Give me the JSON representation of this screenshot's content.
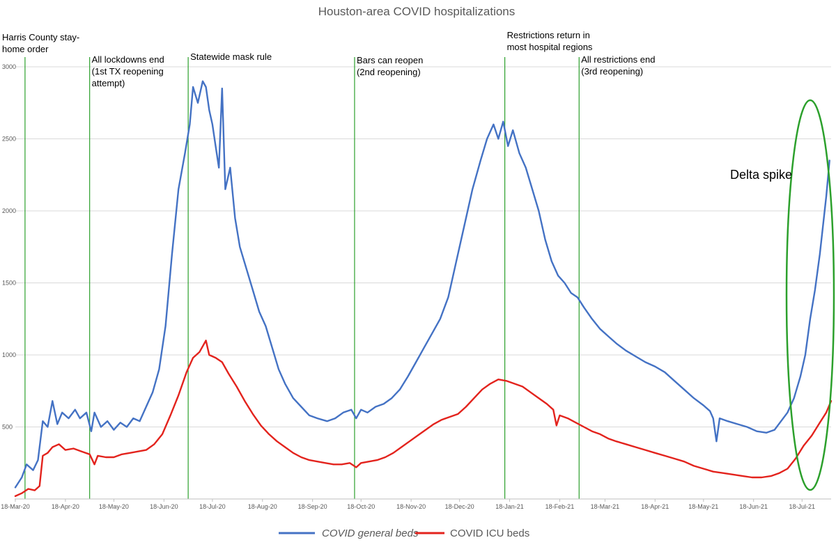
{
  "chart_data": {
    "type": "line",
    "title": "Houston-area COVID hospitalizations",
    "xlabel": "",
    "ylabel": "",
    "ylim": [
      0,
      3000
    ],
    "yticks": [
      500,
      1000,
      1500,
      2000,
      2500,
      3000
    ],
    "ytick_labels": [
      "500",
      "1000",
      "1500",
      "2000",
      "2500",
      "3000"
    ],
    "grid": true,
    "legend_position": "bottom",
    "x_tick_dates": [
      "2020-03-18",
      "2020-04-18",
      "2020-05-18",
      "2020-06-18",
      "2020-07-18",
      "2020-08-18",
      "2020-09-18",
      "2020-10-18",
      "2020-11-18",
      "2020-12-18",
      "2021-01-18",
      "2021-02-18",
      "2021-03-18",
      "2021-04-18",
      "2021-05-18",
      "2021-06-18",
      "2021-07-18"
    ],
    "x_tick_labels": [
      "18-Mar-20",
      "18-Apr-20",
      "18-May-20",
      "18-Jun-20",
      "18-Jul-20",
      "18-Aug-20",
      "18-Sep-20",
      "18-Oct-20",
      "18-Nov-20",
      "18-Dec-20",
      "18-Jan-21",
      "18-Feb-21",
      "18-Mar-21",
      "18-Apr-21",
      "18-May-21",
      "18-Jun-21",
      "18-Jul-21"
    ],
    "x_range": [
      "2020-03-18",
      "2021-08-05"
    ],
    "series": [
      {
        "name": "COVID general beds",
        "color": "#4472C4",
        "points": [
          [
            "2020-03-18",
            80
          ],
          [
            "2020-03-22",
            150
          ],
          [
            "2020-03-25",
            240
          ],
          [
            "2020-03-29",
            200
          ],
          [
            "2020-04-01",
            270
          ],
          [
            "2020-04-04",
            540
          ],
          [
            "2020-04-07",
            500
          ],
          [
            "2020-04-10",
            680
          ],
          [
            "2020-04-13",
            520
          ],
          [
            "2020-04-16",
            600
          ],
          [
            "2020-04-20",
            560
          ],
          [
            "2020-04-24",
            620
          ],
          [
            "2020-04-27",
            560
          ],
          [
            "2020-05-01",
            600
          ],
          [
            "2020-05-04",
            470
          ],
          [
            "2020-05-06",
            600
          ],
          [
            "2020-05-10",
            500
          ],
          [
            "2020-05-14",
            540
          ],
          [
            "2020-05-18",
            480
          ],
          [
            "2020-05-22",
            530
          ],
          [
            "2020-05-26",
            500
          ],
          [
            "2020-05-30",
            560
          ],
          [
            "2020-06-03",
            540
          ],
          [
            "2020-06-07",
            640
          ],
          [
            "2020-06-11",
            740
          ],
          [
            "2020-06-15",
            900
          ],
          [
            "2020-06-19",
            1200
          ],
          [
            "2020-06-23",
            1700
          ],
          [
            "2020-06-27",
            2150
          ],
          [
            "2020-07-01",
            2400
          ],
          [
            "2020-07-04",
            2600
          ],
          [
            "2020-07-06",
            2860
          ],
          [
            "2020-07-09",
            2750
          ],
          [
            "2020-07-12",
            2900
          ],
          [
            "2020-07-14",
            2860
          ],
          [
            "2020-07-16",
            2700
          ],
          [
            "2020-07-18",
            2600
          ],
          [
            "2020-07-20",
            2450
          ],
          [
            "2020-07-22",
            2300
          ],
          [
            "2020-07-24",
            2850
          ],
          [
            "2020-07-26",
            2150
          ],
          [
            "2020-07-29",
            2300
          ],
          [
            "2020-08-01",
            1950
          ],
          [
            "2020-08-04",
            1750
          ],
          [
            "2020-08-08",
            1600
          ],
          [
            "2020-08-12",
            1450
          ],
          [
            "2020-08-16",
            1300
          ],
          [
            "2020-08-20",
            1200
          ],
          [
            "2020-08-24",
            1050
          ],
          [
            "2020-08-28",
            900
          ],
          [
            "2020-09-01",
            800
          ],
          [
            "2020-09-06",
            700
          ],
          [
            "2020-09-11",
            640
          ],
          [
            "2020-09-16",
            580
          ],
          [
            "2020-09-21",
            560
          ],
          [
            "2020-09-27",
            540
          ],
          [
            "2020-10-02",
            560
          ],
          [
            "2020-10-07",
            600
          ],
          [
            "2020-10-12",
            620
          ],
          [
            "2020-10-15",
            560
          ],
          [
            "2020-10-18",
            620
          ],
          [
            "2020-10-22",
            600
          ],
          [
            "2020-10-27",
            640
          ],
          [
            "2020-11-01",
            660
          ],
          [
            "2020-11-06",
            700
          ],
          [
            "2020-11-11",
            760
          ],
          [
            "2020-11-16",
            850
          ],
          [
            "2020-11-21",
            950
          ],
          [
            "2020-11-26",
            1050
          ],
          [
            "2020-12-01",
            1150
          ],
          [
            "2020-12-06",
            1250
          ],
          [
            "2020-12-11",
            1400
          ],
          [
            "2020-12-16",
            1650
          ],
          [
            "2020-12-21",
            1900
          ],
          [
            "2020-12-26",
            2150
          ],
          [
            "2020-12-31",
            2350
          ],
          [
            "2021-01-04",
            2500
          ],
          [
            "2021-01-08",
            2600
          ],
          [
            "2021-01-11",
            2500
          ],
          [
            "2021-01-14",
            2620
          ],
          [
            "2021-01-17",
            2450
          ],
          [
            "2021-01-20",
            2560
          ],
          [
            "2021-01-24",
            2400
          ],
          [
            "2021-01-28",
            2300
          ],
          [
            "2021-02-01",
            2150
          ],
          [
            "2021-02-05",
            2000
          ],
          [
            "2021-02-09",
            1800
          ],
          [
            "2021-02-13",
            1650
          ],
          [
            "2021-02-17",
            1550
          ],
          [
            "2021-02-21",
            1500
          ],
          [
            "2021-02-25",
            1430
          ],
          [
            "2021-03-01",
            1400
          ],
          [
            "2021-03-05",
            1330
          ],
          [
            "2021-03-10",
            1250
          ],
          [
            "2021-03-15",
            1180
          ],
          [
            "2021-03-20",
            1130
          ],
          [
            "2021-03-25",
            1080
          ],
          [
            "2021-03-31",
            1030
          ],
          [
            "2021-04-06",
            990
          ],
          [
            "2021-04-12",
            950
          ],
          [
            "2021-04-18",
            920
          ],
          [
            "2021-04-24",
            880
          ],
          [
            "2021-04-30",
            820
          ],
          [
            "2021-05-06",
            760
          ],
          [
            "2021-05-12",
            700
          ],
          [
            "2021-05-18",
            650
          ],
          [
            "2021-05-22",
            610
          ],
          [
            "2021-05-24",
            560
          ],
          [
            "2021-05-26",
            400
          ],
          [
            "2021-05-28",
            560
          ],
          [
            "2021-06-02",
            540
          ],
          [
            "2021-06-08",
            520
          ],
          [
            "2021-06-14",
            500
          ],
          [
            "2021-06-20",
            470
          ],
          [
            "2021-06-26",
            460
          ],
          [
            "2021-07-01",
            480
          ],
          [
            "2021-07-05",
            540
          ],
          [
            "2021-07-09",
            600
          ],
          [
            "2021-07-13",
            700
          ],
          [
            "2021-07-17",
            850
          ],
          [
            "2021-07-20",
            1000
          ],
          [
            "2021-07-23",
            1250
          ],
          [
            "2021-07-26",
            1450
          ],
          [
            "2021-07-29",
            1700
          ],
          [
            "2021-07-31",
            1900
          ],
          [
            "2021-08-02",
            2100
          ],
          [
            "2021-08-04",
            2350
          ]
        ]
      },
      {
        "name": "COVID ICU beds",
        "color": "#E3231D",
        "points": [
          [
            "2020-03-18",
            20
          ],
          [
            "2020-03-22",
            40
          ],
          [
            "2020-03-26",
            70
          ],
          [
            "2020-03-30",
            60
          ],
          [
            "2020-04-02",
            90
          ],
          [
            "2020-04-04",
            300
          ],
          [
            "2020-04-07",
            320
          ],
          [
            "2020-04-10",
            360
          ],
          [
            "2020-04-14",
            380
          ],
          [
            "2020-04-18",
            340
          ],
          [
            "2020-04-23",
            350
          ],
          [
            "2020-04-28",
            330
          ],
          [
            "2020-05-03",
            310
          ],
          [
            "2020-05-06",
            240
          ],
          [
            "2020-05-08",
            300
          ],
          [
            "2020-05-13",
            290
          ],
          [
            "2020-05-18",
            290
          ],
          [
            "2020-05-23",
            310
          ],
          [
            "2020-05-28",
            320
          ],
          [
            "2020-06-02",
            330
          ],
          [
            "2020-06-07",
            340
          ],
          [
            "2020-06-12",
            380
          ],
          [
            "2020-06-17",
            450
          ],
          [
            "2020-06-22",
            580
          ],
          [
            "2020-06-27",
            720
          ],
          [
            "2020-07-02",
            880
          ],
          [
            "2020-07-06",
            980
          ],
          [
            "2020-07-10",
            1020
          ],
          [
            "2020-07-14",
            1100
          ],
          [
            "2020-07-16",
            1000
          ],
          [
            "2020-07-20",
            980
          ],
          [
            "2020-07-24",
            950
          ],
          [
            "2020-07-28",
            870
          ],
          [
            "2020-08-02",
            780
          ],
          [
            "2020-08-07",
            680
          ],
          [
            "2020-08-12",
            590
          ],
          [
            "2020-08-17",
            510
          ],
          [
            "2020-08-22",
            450
          ],
          [
            "2020-08-27",
            400
          ],
          [
            "2020-09-01",
            360
          ],
          [
            "2020-09-06",
            320
          ],
          [
            "2020-09-11",
            290
          ],
          [
            "2020-09-16",
            270
          ],
          [
            "2020-09-21",
            260
          ],
          [
            "2020-09-26",
            250
          ],
          [
            "2020-10-01",
            240
          ],
          [
            "2020-10-06",
            240
          ],
          [
            "2020-10-11",
            250
          ],
          [
            "2020-10-15",
            220
          ],
          [
            "2020-10-18",
            250
          ],
          [
            "2020-10-23",
            260
          ],
          [
            "2020-10-28",
            270
          ],
          [
            "2020-11-02",
            290
          ],
          [
            "2020-11-07",
            320
          ],
          [
            "2020-11-12",
            360
          ],
          [
            "2020-11-17",
            400
          ],
          [
            "2020-11-22",
            440
          ],
          [
            "2020-11-27",
            480
          ],
          [
            "2020-12-02",
            520
          ],
          [
            "2020-12-07",
            550
          ],
          [
            "2020-12-12",
            570
          ],
          [
            "2020-12-17",
            590
          ],
          [
            "2020-12-22",
            640
          ],
          [
            "2020-12-27",
            700
          ],
          [
            "2021-01-01",
            760
          ],
          [
            "2021-01-06",
            800
          ],
          [
            "2021-01-11",
            830
          ],
          [
            "2021-01-16",
            820
          ],
          [
            "2021-01-21",
            800
          ],
          [
            "2021-01-26",
            780
          ],
          [
            "2021-01-31",
            740
          ],
          [
            "2021-02-05",
            700
          ],
          [
            "2021-02-10",
            660
          ],
          [
            "2021-02-14",
            620
          ],
          [
            "2021-02-16",
            510
          ],
          [
            "2021-02-18",
            580
          ],
          [
            "2021-02-23",
            560
          ],
          [
            "2021-02-28",
            530
          ],
          [
            "2021-03-05",
            500
          ],
          [
            "2021-03-10",
            470
          ],
          [
            "2021-03-15",
            450
          ],
          [
            "2021-03-20",
            420
          ],
          [
            "2021-03-25",
            400
          ],
          [
            "2021-03-31",
            380
          ],
          [
            "2021-04-06",
            360
          ],
          [
            "2021-04-12",
            340
          ],
          [
            "2021-04-18",
            320
          ],
          [
            "2021-04-24",
            300
          ],
          [
            "2021-04-30",
            280
          ],
          [
            "2021-05-06",
            260
          ],
          [
            "2021-05-12",
            230
          ],
          [
            "2021-05-18",
            210
          ],
          [
            "2021-05-24",
            190
          ],
          [
            "2021-05-30",
            180
          ],
          [
            "2021-06-05",
            170
          ],
          [
            "2021-06-11",
            160
          ],
          [
            "2021-06-17",
            150
          ],
          [
            "2021-06-23",
            150
          ],
          [
            "2021-06-29",
            160
          ],
          [
            "2021-07-04",
            180
          ],
          [
            "2021-07-09",
            210
          ],
          [
            "2021-07-14",
            280
          ],
          [
            "2021-07-19",
            370
          ],
          [
            "2021-07-24",
            440
          ],
          [
            "2021-07-29",
            530
          ],
          [
            "2021-08-02",
            600
          ],
          [
            "2021-08-05",
            680
          ]
        ]
      }
    ],
    "annotations": [
      {
        "date": "2020-03-24",
        "lines": [
          "Harris County stay-",
          "home order"
        ],
        "size": "normal"
      },
      {
        "date": "2020-05-03",
        "lines": [
          "All lockdowns end",
          "(1st TX reopening",
          "attempt)"
        ],
        "size": "normal"
      },
      {
        "date": "2020-07-03",
        "lines": [
          "Statewide mask rule"
        ],
        "size": "normal"
      },
      {
        "date": "2020-10-14",
        "lines": [
          "Bars can reopen",
          "(2nd reopening)"
        ],
        "size": "normal"
      },
      {
        "date": "2021-01-15",
        "lines": [
          "Restrictions return in",
          "most hospital regions"
        ],
        "size": "normal"
      },
      {
        "date": "2021-03-02",
        "lines": [
          "All restrictions end",
          "(3rd reopening)"
        ],
        "size": "normal"
      }
    ],
    "callout": {
      "text": "Delta spike"
    }
  }
}
